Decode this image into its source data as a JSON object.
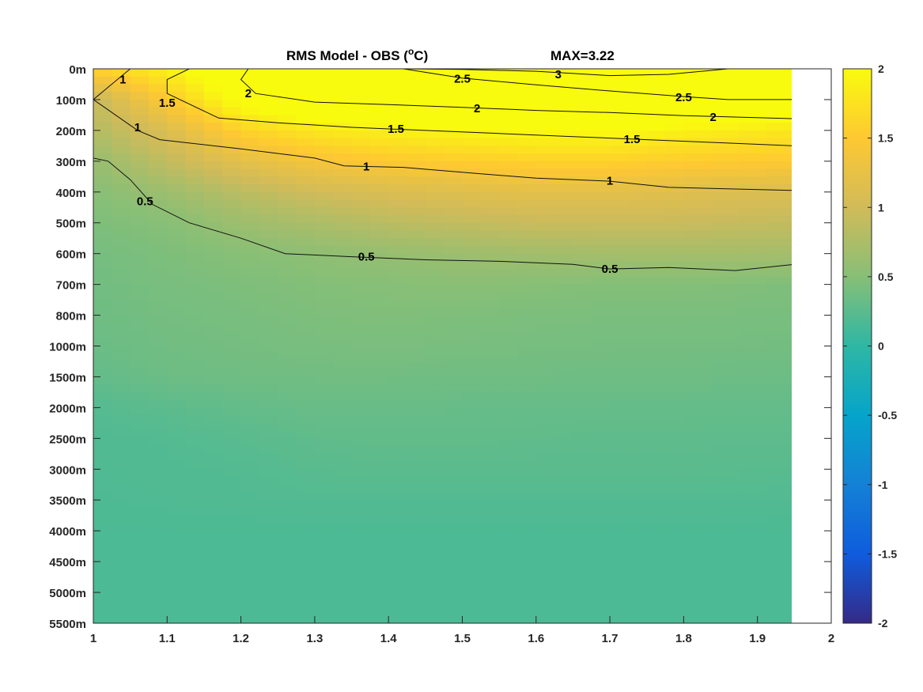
{
  "chart_data": {
    "type": "heatmap",
    "subtype": "filled-contour",
    "title": "RMS Model - OBS (",
    "title_superscript": "o",
    "title_suffix": "C)",
    "annotation": "MAX=3.22",
    "x_ticks": [
      "1",
      "1.1",
      "1.2",
      "1.3",
      "1.4",
      "1.5",
      "1.6",
      "1.7",
      "1.8",
      "1.9",
      "2"
    ],
    "xlim": [
      1,
      2
    ],
    "y_tick_labels": [
      "0m",
      "100m",
      "200m",
      "300m",
      "400m",
      "500m",
      "600m",
      "700m",
      "800m",
      "1000m",
      "1500m",
      "2000m",
      "2500m",
      "3000m",
      "3500m",
      "4000m",
      "4500m",
      "5000m",
      "5500m"
    ],
    "x": [
      1.0,
      1.1,
      1.2,
      1.3,
      1.4,
      1.5,
      1.6,
      1.7,
      1.8,
      1.95
    ],
    "z": [
      [
        1.6,
        1.9,
        2.3,
        2.6,
        2.9,
        3.1,
        3.2,
        3.1,
        2.9,
        2.8
      ],
      [
        0.9,
        1.5,
        2.1,
        2.4,
        2.5,
        2.6,
        2.6,
        2.5,
        2.4,
        2.3
      ],
      [
        0.8,
        1.1,
        1.6,
        1.8,
        1.9,
        1.95,
        2.0,
        2.0,
        1.9,
        1.8
      ],
      [
        0.6,
        0.9,
        1.2,
        1.4,
        1.5,
        1.55,
        1.6,
        1.6,
        1.55,
        1.5
      ],
      [
        0.5,
        0.65,
        0.85,
        1.0,
        1.1,
        1.15,
        1.2,
        1.2,
        1.15,
        1.1
      ],
      [
        0.45,
        0.5,
        0.65,
        0.75,
        0.85,
        0.9,
        0.95,
        0.95,
        0.95,
        0.9
      ],
      [
        0.4,
        0.45,
        0.5,
        0.55,
        0.6,
        0.65,
        0.68,
        0.7,
        0.7,
        0.7
      ],
      [
        0.38,
        0.42,
        0.45,
        0.48,
        0.5,
        0.52,
        0.5,
        0.48,
        0.48,
        0.45
      ],
      [
        0.36,
        0.4,
        0.42,
        0.45,
        0.46,
        0.45,
        0.44,
        0.43,
        0.43,
        0.42
      ],
      [
        0.34,
        0.38,
        0.4,
        0.42,
        0.43,
        0.42,
        0.41,
        0.4,
        0.4,
        0.39
      ],
      [
        0.3,
        0.35,
        0.37,
        0.38,
        0.38,
        0.37,
        0.37,
        0.36,
        0.36,
        0.35
      ],
      [
        0.22,
        0.26,
        0.3,
        0.33,
        0.33,
        0.32,
        0.32,
        0.31,
        0.31,
        0.3
      ],
      [
        0.2,
        0.21,
        0.24,
        0.28,
        0.29,
        0.29,
        0.28,
        0.27,
        0.27,
        0.27
      ],
      [
        0.19,
        0.2,
        0.21,
        0.24,
        0.25,
        0.25,
        0.25,
        0.25,
        0.25,
        0.24
      ],
      [
        0.18,
        0.19,
        0.2,
        0.21,
        0.21,
        0.21,
        0.21,
        0.21,
        0.21,
        0.2
      ],
      [
        0.17,
        0.17,
        0.17,
        0.17,
        0.17,
        0.17,
        0.17,
        0.17,
        0.17,
        0.17
      ],
      [
        0.17,
        0.17,
        0.17,
        0.17,
        0.17,
        0.17,
        0.17,
        0.17,
        0.17,
        0.17
      ],
      [
        0.17,
        0.17,
        0.17,
        0.17,
        0.17,
        0.17,
        0.17,
        0.17,
        0.17,
        0.17
      ],
      [
        0.17,
        0.17,
        0.17,
        0.17,
        0.17,
        0.17,
        0.17,
        0.17,
        0.17,
        0.17
      ]
    ],
    "contour_levels": [
      0.5,
      1,
      1.5,
      2,
      2.5,
      3
    ],
    "contour_lines": [
      {
        "level": "3",
        "points": [
          [
            1.42,
            0
          ],
          [
            1.5,
            0.02
          ],
          [
            1.6,
            0.08
          ],
          [
            1.7,
            0.22
          ],
          [
            1.78,
            0.18
          ],
          [
            1.86,
            0
          ]
        ],
        "labels": [
          {
            "x": 1.63,
            "y": 0.18,
            "text": "3"
          }
        ]
      },
      {
        "level": "2.5",
        "points": [
          [
            1.42,
            0
          ],
          [
            1.5,
            0.3
          ],
          [
            1.6,
            0.52
          ],
          [
            1.7,
            0.72
          ],
          [
            1.8,
            0.9
          ],
          [
            1.86,
            1.0
          ],
          [
            1.95,
            1.0
          ]
        ],
        "labels": [
          {
            "x": 1.5,
            "y": 0.32,
            "text": "2.5"
          },
          {
            "x": 1.8,
            "y": 0.92,
            "text": "2.5"
          }
        ]
      },
      {
        "level": "2",
        "points": [
          [
            1.21,
            0
          ],
          [
            1.2,
            0.35
          ],
          [
            1.22,
            0.8
          ],
          [
            1.3,
            1.08
          ],
          [
            1.4,
            1.16
          ],
          [
            1.5,
            1.25
          ],
          [
            1.6,
            1.35
          ],
          [
            1.7,
            1.42
          ],
          [
            1.8,
            1.52
          ],
          [
            1.95,
            1.62
          ]
        ],
        "labels": [
          {
            "x": 1.21,
            "y": 0.8,
            "text": "2"
          },
          {
            "x": 1.52,
            "y": 1.28,
            "text": "2"
          },
          {
            "x": 1.84,
            "y": 1.56,
            "text": "2"
          }
        ]
      },
      {
        "level": "1.5",
        "points": [
          [
            1.13,
            0
          ],
          [
            1.1,
            0.35
          ],
          [
            1.1,
            0.8
          ],
          [
            1.17,
            1.6
          ],
          [
            1.25,
            1.75
          ],
          [
            1.35,
            1.9
          ],
          [
            1.45,
            2.0
          ],
          [
            1.55,
            2.1
          ],
          [
            1.65,
            2.2
          ],
          [
            1.75,
            2.3
          ],
          [
            1.85,
            2.4
          ],
          [
            1.95,
            2.5
          ]
        ],
        "labels": [
          {
            "x": 1.1,
            "y": 1.1,
            "text": "1.5"
          },
          {
            "x": 1.41,
            "y": 1.95,
            "text": "1.5"
          },
          {
            "x": 1.73,
            "y": 2.28,
            "text": "1.5"
          }
        ]
      },
      {
        "level": "1",
        "points": [
          [
            1.05,
            0
          ],
          [
            1.0,
            1.0
          ],
          [
            1.06,
            2.0
          ],
          [
            1.09,
            2.3
          ],
          [
            1.2,
            2.6
          ],
          [
            1.3,
            2.9
          ],
          [
            1.34,
            3.15
          ],
          [
            1.42,
            3.2
          ],
          [
            1.52,
            3.4
          ],
          [
            1.6,
            3.55
          ],
          [
            1.7,
            3.65
          ],
          [
            1.78,
            3.85
          ],
          [
            1.95,
            3.95
          ]
        ],
        "labels": [
          {
            "x": 1.04,
            "y": 0.35,
            "text": "1"
          },
          {
            "x": 1.06,
            "y": 1.9,
            "text": "1"
          },
          {
            "x": 1.37,
            "y": 3.17,
            "text": "1"
          },
          {
            "x": 1.7,
            "y": 3.63,
            "text": "1"
          }
        ]
      },
      {
        "level": "0.5",
        "points": [
          [
            1.0,
            2.9
          ],
          [
            1.02,
            3.0
          ],
          [
            1.05,
            3.6
          ],
          [
            1.08,
            4.4
          ],
          [
            1.13,
            5.0
          ],
          [
            1.2,
            5.5
          ],
          [
            1.26,
            6.0
          ],
          [
            1.35,
            6.1
          ],
          [
            1.45,
            6.2
          ],
          [
            1.55,
            6.25
          ],
          [
            1.65,
            6.35
          ],
          [
            1.7,
            6.5
          ],
          [
            1.78,
            6.45
          ],
          [
            1.87,
            6.55
          ],
          [
            1.95,
            6.35
          ]
        ],
        "labels": [
          {
            "x": 1.07,
            "y": 4.3,
            "text": "0.5"
          },
          {
            "x": 1.37,
            "y": 6.1,
            "text": "0.5"
          },
          {
            "x": 1.7,
            "y": 6.5,
            "text": "0.5"
          }
        ]
      }
    ],
    "colorbar": {
      "ticks": [
        "2",
        "1.5",
        "1",
        "0.5",
        "0",
        "-0.5",
        "-1",
        "-1.5",
        "-2"
      ],
      "clim": [
        -2,
        2
      ],
      "colormap": "parula",
      "colors": [
        "#352a87",
        "#0f5cdd",
        "#1481d6",
        "#06a4ca",
        "#2eb7a4",
        "#87bf77",
        "#d1bb59",
        "#fec832",
        "#f9fb0e"
      ]
    }
  }
}
